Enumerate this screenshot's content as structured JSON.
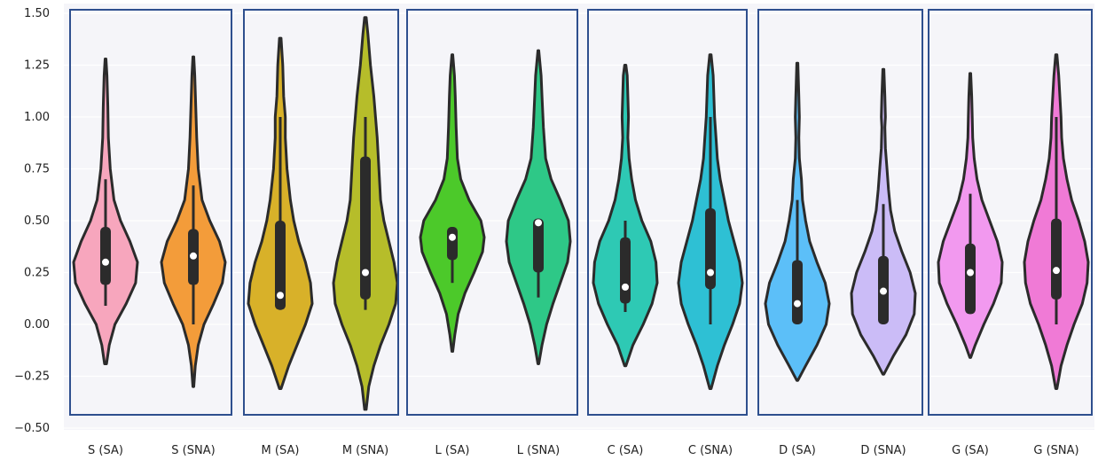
{
  "chart_data": {
    "type": "violin",
    "title": "",
    "xlabel": "",
    "ylabel": "",
    "ylim": [
      -0.5,
      1.5
    ],
    "yticks": [
      -0.5,
      -0.25,
      0.0,
      0.25,
      0.5,
      0.75,
      1.0,
      1.25,
      1.5
    ],
    "ytick_labels": [
      "−0.50",
      "−0.25",
      "0.00",
      "0.25",
      "0.50",
      "0.75",
      "1.00",
      "1.25",
      "1.50"
    ],
    "grid": true,
    "categories": [
      "S (SA)",
      "S (SNA)",
      "M (SA)",
      "M (SNA)",
      "L (SA)",
      "L (SNA)",
      "C (SA)",
      "C (SNA)",
      "D (SA)",
      "D (SNA)",
      "G (SA)",
      "G (SNA)"
    ],
    "groups": [
      [
        0,
        1
      ],
      [
        2,
        3
      ],
      [
        4,
        5
      ],
      [
        6,
        7
      ],
      [
        8,
        9
      ],
      [
        10,
        11
      ]
    ],
    "series": [
      {
        "category": "S (SA)",
        "color": "#f7a6bd",
        "min": 0.09,
        "q1": 0.19,
        "median": 0.3,
        "q3": 0.47,
        "max": 0.7,
        "kde_range": [
          -0.19,
          1.28
        ],
        "density": [
          [
            -0.19,
            1
          ],
          [
            -0.1,
            4
          ],
          [
            0.0,
            10
          ],
          [
            0.1,
            22
          ],
          [
            0.2,
            32
          ],
          [
            0.3,
            34
          ],
          [
            0.4,
            26
          ],
          [
            0.5,
            16
          ],
          [
            0.6,
            9
          ],
          [
            0.75,
            5
          ],
          [
            0.9,
            3
          ],
          [
            1.05,
            2.5
          ],
          [
            1.2,
            1.5
          ],
          [
            1.28,
            0.5
          ]
        ]
      },
      {
        "category": "S (SNA)",
        "color": "#f39c3a",
        "min": 0.0,
        "q1": 0.19,
        "median": 0.33,
        "q3": 0.46,
        "max": 0.67,
        "kde_range": [
          -0.3,
          1.29
        ],
        "density": [
          [
            -0.3,
            0.5
          ],
          [
            -0.2,
            2
          ],
          [
            -0.1,
            5
          ],
          [
            0.0,
            11
          ],
          [
            0.1,
            21
          ],
          [
            0.2,
            30
          ],
          [
            0.3,
            33
          ],
          [
            0.4,
            27
          ],
          [
            0.5,
            17
          ],
          [
            0.6,
            9
          ],
          [
            0.75,
            5
          ],
          [
            0.9,
            3.5
          ],
          [
            1.05,
            2.5
          ],
          [
            1.2,
            1.5
          ],
          [
            1.29,
            0.5
          ]
        ]
      },
      {
        "category": "M (SA)",
        "color": "#d8b129",
        "min": 0.07,
        "q1": 0.07,
        "median": 0.14,
        "q3": 0.5,
        "max": 1.0,
        "kde_range": [
          -0.31,
          1.38
        ],
        "density": [
          [
            -0.31,
            0.5
          ],
          [
            -0.2,
            5
          ],
          [
            -0.1,
            10
          ],
          [
            0.0,
            15
          ],
          [
            0.1,
            19
          ],
          [
            0.2,
            18
          ],
          [
            0.3,
            15
          ],
          [
            0.4,
            11
          ],
          [
            0.5,
            8
          ],
          [
            0.6,
            6
          ],
          [
            0.75,
            4
          ],
          [
            0.9,
            3
          ],
          [
            1.0,
            3
          ],
          [
            1.1,
            2
          ],
          [
            1.25,
            1.5
          ],
          [
            1.38,
            0.5
          ]
        ]
      },
      {
        "category": "M (SNA)",
        "color": "#b6bd2a",
        "min": 0.07,
        "q1": 0.12,
        "median": 0.25,
        "q3": 0.81,
        "max": 1.0,
        "kde_range": [
          -0.41,
          1.48
        ],
        "density": [
          [
            -0.41,
            0.5
          ],
          [
            -0.3,
            2
          ],
          [
            -0.2,
            5
          ],
          [
            -0.1,
            9
          ],
          [
            0.0,
            14
          ],
          [
            0.1,
            18
          ],
          [
            0.2,
            19
          ],
          [
            0.3,
            17
          ],
          [
            0.4,
            14
          ],
          [
            0.5,
            11
          ],
          [
            0.6,
            9
          ],
          [
            0.75,
            8
          ],
          [
            0.9,
            7
          ],
          [
            1.0,
            6
          ],
          [
            1.1,
            5
          ],
          [
            1.25,
            3
          ],
          [
            1.4,
            1.5
          ],
          [
            1.48,
            0.5
          ]
        ]
      },
      {
        "category": "L (SA)",
        "color": "#4cc92a",
        "min": 0.2,
        "q1": 0.31,
        "median": 0.42,
        "q3": 0.47,
        "max": 0.47,
        "kde_range": [
          -0.13,
          1.3
        ],
        "density": [
          [
            -0.13,
            0.5
          ],
          [
            -0.05,
            3
          ],
          [
            0.05,
            7
          ],
          [
            0.15,
            15
          ],
          [
            0.25,
            26
          ],
          [
            0.35,
            36
          ],
          [
            0.42,
            38
          ],
          [
            0.5,
            34
          ],
          [
            0.6,
            20
          ],
          [
            0.7,
            10
          ],
          [
            0.8,
            6
          ],
          [
            0.95,
            4.5
          ],
          [
            1.1,
            3.5
          ],
          [
            1.2,
            2.5
          ],
          [
            1.3,
            0.5
          ]
        ]
      },
      {
        "category": "L (SNA)",
        "color": "#2ec887",
        "min": 0.13,
        "q1": 0.25,
        "median": 0.49,
        "q3": 0.51,
        "max": 0.51,
        "kde_range": [
          -0.19,
          1.32
        ],
        "density": [
          [
            -0.19,
            0.5
          ],
          [
            -0.1,
            4
          ],
          [
            0.0,
            9
          ],
          [
            0.1,
            16
          ],
          [
            0.2,
            24
          ],
          [
            0.3,
            32
          ],
          [
            0.4,
            35
          ],
          [
            0.5,
            33
          ],
          [
            0.6,
            24
          ],
          [
            0.7,
            14
          ],
          [
            0.8,
            8
          ],
          [
            0.95,
            5.5
          ],
          [
            1.1,
            4
          ],
          [
            1.2,
            3
          ],
          [
            1.32,
            0.5
          ]
        ]
      },
      {
        "category": "C (SA)",
        "color": "#2ec9b4",
        "min": 0.06,
        "q1": 0.1,
        "median": 0.18,
        "q3": 0.42,
        "max": 0.5,
        "kde_range": [
          -0.2,
          1.25
        ],
        "density": [
          [
            -0.2,
            0.5
          ],
          [
            -0.1,
            6
          ],
          [
            0.0,
            14
          ],
          [
            0.1,
            21
          ],
          [
            0.2,
            25
          ],
          [
            0.3,
            24
          ],
          [
            0.4,
            20
          ],
          [
            0.5,
            13
          ],
          [
            0.6,
            8
          ],
          [
            0.7,
            5
          ],
          [
            0.8,
            3
          ],
          [
            0.9,
            2
          ],
          [
            1.0,
            2.5
          ],
          [
            1.1,
            2
          ],
          [
            1.2,
            1.5
          ],
          [
            1.25,
            0.5
          ]
        ]
      },
      {
        "category": "C (SNA)",
        "color": "#2ec0d4",
        "min": 0.0,
        "q1": 0.17,
        "median": 0.25,
        "q3": 0.56,
        "max": 1.0,
        "kde_range": [
          -0.31,
          1.3
        ],
        "density": [
          [
            -0.31,
            0.5
          ],
          [
            -0.2,
            5
          ],
          [
            -0.1,
            10
          ],
          [
            0.0,
            16
          ],
          [
            0.1,
            21
          ],
          [
            0.2,
            23
          ],
          [
            0.3,
            21
          ],
          [
            0.4,
            17
          ],
          [
            0.5,
            13
          ],
          [
            0.6,
            10
          ],
          [
            0.7,
            7
          ],
          [
            0.8,
            5
          ],
          [
            0.9,
            4
          ],
          [
            1.0,
            3
          ],
          [
            1.1,
            2.5
          ],
          [
            1.2,
            2
          ],
          [
            1.3,
            0.5
          ]
        ]
      },
      {
        "category": "D (SA)",
        "color": "#5cbff8",
        "min": 0.0,
        "q1": 0.0,
        "median": 0.1,
        "q3": 0.31,
        "max": 0.6,
        "kde_range": [
          -0.27,
          1.26
        ],
        "density": [
          [
            -0.27,
            0.5
          ],
          [
            -0.2,
            8
          ],
          [
            -0.1,
            19
          ],
          [
            0.0,
            28
          ],
          [
            0.1,
            31
          ],
          [
            0.2,
            27
          ],
          [
            0.3,
            19
          ],
          [
            0.4,
            12
          ],
          [
            0.5,
            8
          ],
          [
            0.6,
            5
          ],
          [
            0.7,
            4
          ],
          [
            0.8,
            2
          ],
          [
            0.9,
            1.5
          ],
          [
            1.0,
            2
          ],
          [
            1.1,
            1.5
          ],
          [
            1.26,
            0.5
          ]
        ]
      },
      {
        "category": "D (SNA)",
        "color": "#cbbcf7",
        "min": 0.0,
        "q1": 0.0,
        "median": 0.16,
        "q3": 0.33,
        "max": 0.58,
        "kde_range": [
          -0.24,
          1.23
        ],
        "density": [
          [
            -0.24,
            0.5
          ],
          [
            -0.15,
            10
          ],
          [
            -0.05,
            22
          ],
          [
            0.05,
            30
          ],
          [
            0.15,
            31
          ],
          [
            0.25,
            26
          ],
          [
            0.35,
            18
          ],
          [
            0.45,
            11
          ],
          [
            0.55,
            7
          ],
          [
            0.65,
            5
          ],
          [
            0.75,
            3.5
          ],
          [
            0.85,
            2
          ],
          [
            0.95,
            1.5
          ],
          [
            1.0,
            2
          ],
          [
            1.1,
            1.5
          ],
          [
            1.23,
            0.5
          ]
        ]
      },
      {
        "category": "G (SA)",
        "color": "#f299ef",
        "min": 0.05,
        "q1": 0.05,
        "median": 0.25,
        "q3": 0.39,
        "max": 0.63,
        "kde_range": [
          -0.16,
          1.21
        ],
        "density": [
          [
            -0.16,
            0.5
          ],
          [
            -0.1,
            5
          ],
          [
            0.0,
            14
          ],
          [
            0.1,
            24
          ],
          [
            0.2,
            32
          ],
          [
            0.3,
            33
          ],
          [
            0.4,
            28
          ],
          [
            0.5,
            20
          ],
          [
            0.6,
            12
          ],
          [
            0.7,
            7
          ],
          [
            0.8,
            4
          ],
          [
            0.9,
            2.5
          ],
          [
            1.0,
            2
          ],
          [
            1.1,
            1.5
          ],
          [
            1.21,
            0.5
          ]
        ]
      },
      {
        "category": "G (SNA)",
        "color": "#f07ad6",
        "min": 0.0,
        "q1": 0.12,
        "median": 0.26,
        "q3": 0.51,
        "max": 1.0,
        "kde_range": [
          -0.31,
          1.3
        ],
        "density": [
          [
            -0.31,
            0.5
          ],
          [
            -0.2,
            4
          ],
          [
            -0.1,
            9
          ],
          [
            0.0,
            15
          ],
          [
            0.1,
            22
          ],
          [
            0.2,
            26
          ],
          [
            0.3,
            27
          ],
          [
            0.4,
            24
          ],
          [
            0.5,
            19
          ],
          [
            0.6,
            13
          ],
          [
            0.7,
            9
          ],
          [
            0.8,
            6
          ],
          [
            0.9,
            4.5
          ],
          [
            1.0,
            4
          ],
          [
            1.1,
            3
          ],
          [
            1.2,
            2
          ],
          [
            1.3,
            0.5
          ]
        ]
      }
    ]
  }
}
